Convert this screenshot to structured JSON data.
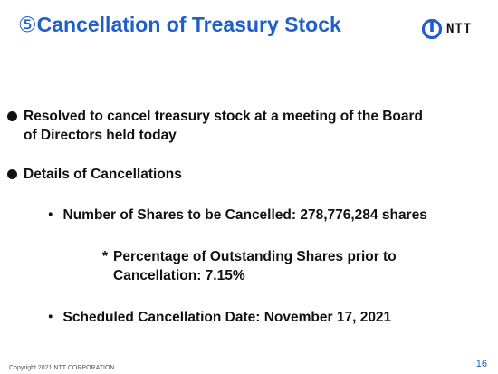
{
  "slide": {
    "title_number": "⑤",
    "title_text": "Cancellation of Treasury Stock",
    "logo_text": "NTT",
    "bullets": [
      {
        "text_line1": "Resolved to cancel treasury stock at a meeting of the Board",
        "text_line2": "of Directors held today"
      },
      {
        "text": "Details of Cancellations"
      }
    ],
    "details": {
      "shares_marker": "・",
      "shares": "Number of Shares to be Cancelled: 278,776,284 shares",
      "percentage_marker": "*",
      "percentage_line1": "Percentage of Outstanding Shares prior to",
      "percentage_line2": "Cancellation: 7.15%",
      "date_marker": "・",
      "date": "Scheduled Cancellation Date: November 17, 2021"
    },
    "footer": "Copyright 2021 NTT CORPORATION",
    "page_number": "16"
  }
}
